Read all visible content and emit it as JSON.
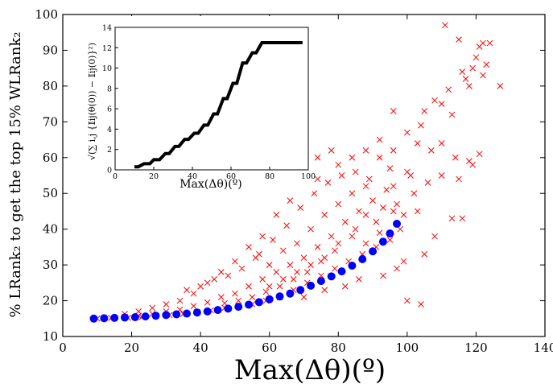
{
  "chart_data": [
    {
      "type": "scatter",
      "xlabel": "Max(Δθ)(º)",
      "ylabel": "% LRank₂ to get the top 15% WLRank₂",
      "xlim": [
        0,
        140
      ],
      "ylim": [
        10,
        100
      ],
      "xticks": [
        "0",
        "20",
        "40",
        "60",
        "80",
        "100",
        "120",
        "140"
      ],
      "yticks": [
        "10",
        "20",
        "30",
        "40",
        "50",
        "60",
        "70",
        "80",
        "90",
        "100"
      ],
      "grid": false,
      "series": [
        {
          "marker": "x",
          "color": "#ff0000",
          "points": [
            [
              111,
              97
            ],
            [
              115,
              93
            ],
            [
              122,
              92
            ],
            [
              124,
              92
            ],
            [
              121,
              91
            ],
            [
              120,
              88
            ],
            [
              123,
              86
            ],
            [
              119,
              85
            ],
            [
              116,
              84
            ],
            [
              117,
              82
            ],
            [
              118,
              80
            ],
            [
              122,
              83
            ],
            [
              127,
              80
            ],
            [
              112,
              79
            ],
            [
              108,
              76
            ],
            [
              110,
              75
            ],
            [
              113,
              72
            ],
            [
              105,
              73
            ],
            [
              104,
              69
            ],
            [
              96,
              73
            ],
            [
              100,
              67
            ],
            [
              103,
              64
            ],
            [
              107,
              62
            ],
            [
              110,
              64
            ],
            [
              114,
              60
            ],
            [
              118,
              59
            ],
            [
              121,
              61
            ],
            [
              78,
              62
            ],
            [
              74,
              60
            ],
            [
              70,
              58
            ],
            [
              92,
              60
            ],
            [
              95,
              57
            ],
            [
              101,
              55
            ],
            [
              106,
              53
            ],
            [
              110,
              55
            ],
            [
              119,
              58
            ],
            [
              115,
              54
            ],
            [
              113,
              43
            ],
            [
              116,
              43
            ],
            [
              103,
              45
            ],
            [
              108,
              38
            ],
            [
              105,
              33
            ],
            [
              99,
              31
            ],
            [
              97,
              29
            ],
            [
              93,
              27
            ],
            [
              86,
              26
            ],
            [
              82,
              24
            ],
            [
              76,
              23
            ],
            [
              70,
              21
            ],
            [
              104,
              19
            ],
            [
              100,
              20
            ],
            [
              56,
              32
            ],
            [
              60,
              30
            ],
            [
              64,
              34
            ],
            [
              68,
              36
            ],
            [
              72,
              40
            ],
            [
              76,
              44
            ],
            [
              80,
              47
            ],
            [
              84,
              50
            ],
            [
              88,
              52
            ],
            [
              90,
              48
            ],
            [
              86,
              45
            ],
            [
              82,
              42
            ],
            [
              78,
              38
            ],
            [
              74,
              35
            ],
            [
              70,
              32
            ],
            [
              66,
              30
            ],
            [
              62,
              28
            ],
            [
              58,
              26
            ],
            [
              54,
              24
            ],
            [
              50,
              22
            ],
            [
              46,
              21
            ],
            [
              42,
              19.5
            ],
            [
              38,
              18.5
            ],
            [
              34,
              17.5
            ],
            [
              30,
              17
            ],
            [
              26,
              16.3
            ],
            [
              22,
              15.8
            ],
            [
              18,
              15.5
            ],
            [
              14,
              15.2
            ],
            [
              10,
              15
            ],
            [
              48,
              27
            ],
            [
              44,
              26
            ],
            [
              40,
              24
            ],
            [
              36,
              23
            ],
            [
              52,
              29
            ],
            [
              57,
              33
            ],
            [
              61,
              37
            ],
            [
              65,
              41
            ],
            [
              69,
              46
            ],
            [
              73,
              50
            ],
            [
              77,
              53
            ],
            [
              81,
              55
            ],
            [
              85,
              56
            ],
            [
              89,
              54
            ],
            [
              94,
              51
            ],
            [
              97,
              47
            ],
            [
              99,
              44
            ],
            [
              102,
              50
            ],
            [
              98,
              40
            ],
            [
              95,
              37
            ],
            [
              91,
              35
            ],
            [
              87,
              33
            ],
            [
              83,
              31
            ],
            [
              79,
              29
            ],
            [
              75,
              27
            ],
            [
              71,
              25
            ],
            [
              67,
              23
            ],
            [
              63,
              21
            ],
            [
              59,
              20
            ],
            [
              55,
              19
            ],
            [
              51,
              18.5
            ],
            [
              47,
              18
            ],
            [
              43,
              17.3
            ],
            [
              39,
              16.8
            ],
            [
              35,
              16.3
            ],
            [
              31,
              16
            ],
            [
              27,
              15.7
            ],
            [
              23,
              15.4
            ],
            [
              19,
              15.2
            ],
            [
              62,
              44
            ],
            [
              66,
              48
            ],
            [
              70,
              52
            ],
            [
              74,
              54
            ],
            [
              80,
              58
            ],
            [
              84,
              60
            ],
            [
              88,
              62
            ],
            [
              92,
              65
            ],
            [
              96,
              62
            ],
            [
              58,
              38
            ],
            [
              54,
              35
            ],
            [
              50,
              31
            ],
            [
              46,
              28
            ],
            [
              42,
              25
            ],
            [
              38,
              22
            ],
            [
              34,
              20
            ],
            [
              30,
              19
            ],
            [
              26,
              18
            ],
            [
              22,
              17
            ],
            [
              18,
              16.3
            ],
            [
              85,
              40
            ],
            [
              88,
              44
            ],
            [
              91,
              42
            ],
            [
              93,
              46
            ],
            [
              96,
              52
            ],
            [
              100,
              56
            ],
            [
              79,
              34
            ],
            [
              75,
              31
            ],
            [
              71,
              28
            ],
            [
              67,
              26
            ],
            [
              63,
              24
            ],
            [
              59,
              22.5
            ],
            [
              55,
              21
            ],
            [
              51,
              20
            ],
            [
              47,
              19.3
            ],
            [
              60,
              24
            ],
            [
              64,
              26
            ],
            [
              68,
              28
            ],
            [
              72,
              30
            ],
            [
              76,
              32
            ],
            [
              80,
              36
            ],
            [
              84,
              38
            ],
            [
              88,
              36
            ],
            [
              92,
              39
            ],
            [
              96,
              45
            ]
          ]
        },
        {
          "marker": "o",
          "color": "#0000ff",
          "points": [
            [
              9,
              15
            ],
            [
              12,
              15.1
            ],
            [
              15,
              15.2
            ],
            [
              18,
              15.3
            ],
            [
              21,
              15.4
            ],
            [
              24,
              15.6
            ],
            [
              27,
              15.8
            ],
            [
              30,
              16
            ],
            [
              33,
              16.2
            ],
            [
              36,
              16.4
            ],
            [
              39,
              16.7
            ],
            [
              42,
              17
            ],
            [
              45,
              17.4
            ],
            [
              48,
              17.8
            ],
            [
              51,
              18.3
            ],
            [
              54,
              18.9
            ],
            [
              57,
              19.6
            ],
            [
              60,
              20.4
            ],
            [
              63,
              21.2
            ],
            [
              66,
              22
            ],
            [
              69,
              23
            ],
            [
              72,
              24.2
            ],
            [
              75,
              25.5
            ],
            [
              78,
              26.8
            ],
            [
              81,
              28.2
            ],
            [
              84,
              29.8
            ],
            [
              87,
              31.6
            ],
            [
              90,
              33.8
            ],
            [
              93,
              36.5
            ],
            [
              95,
              38.8
            ],
            [
              97,
              41.5
            ]
          ]
        }
      ]
    },
    {
      "type": "line",
      "xlabel": "Max(Δθ)(º)",
      "ylabel": "√(∑ i,j {𝕀ij(θ(0)) − 𝕀ij(0)}²)",
      "xlim": [
        0,
        100
      ],
      "ylim": [
        0,
        14
      ],
      "xticks": [
        "0",
        "20",
        "40",
        "60",
        "80",
        "100"
      ],
      "yticks": [
        "0",
        "2",
        "4",
        "6",
        "8",
        "10",
        "12",
        "14"
      ],
      "grid": false,
      "series": [
        {
          "color": "#000000",
          "x": [
            10,
            12,
            15,
            18,
            20,
            23,
            26,
            28,
            31,
            33,
            36,
            38,
            41,
            43,
            46,
            48,
            51,
            53,
            56,
            58,
            61,
            63,
            66,
            68,
            71,
            73,
            76,
            78,
            81,
            83,
            86,
            88,
            91,
            97
          ],
          "y": [
            0.3,
            0.3,
            0.6,
            0.6,
            1,
            1,
            1.6,
            1.6,
            2.3,
            2.3,
            3,
            3,
            3.6,
            3.6,
            4.4,
            4.4,
            5.5,
            5.5,
            7,
            7,
            8.5,
            8.5,
            10.5,
            10.5,
            11.5,
            11.5,
            12.5,
            12.5,
            12.5,
            12.5,
            12.5,
            12.5,
            12.5,
            12.5
          ]
        }
      ]
    }
  ]
}
